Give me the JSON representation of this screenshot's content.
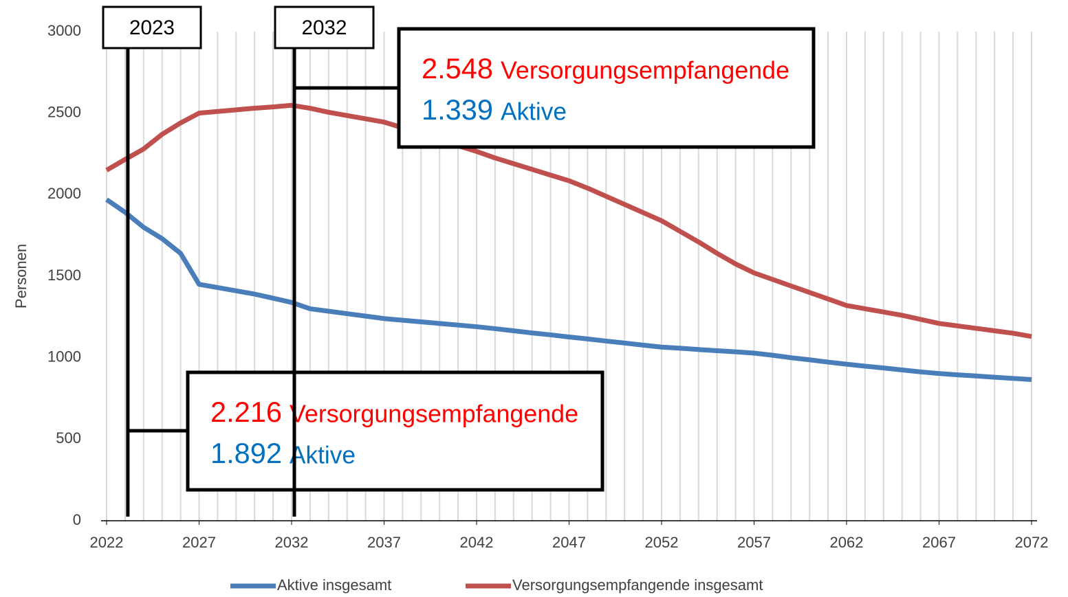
{
  "chart_data": {
    "type": "line",
    "y_label": "Personen",
    "x": [
      2022,
      2023,
      2024,
      2025,
      2026,
      2027,
      2028,
      2029,
      2030,
      2031,
      2032,
      2033,
      2034,
      2035,
      2036,
      2037,
      2038,
      2039,
      2040,
      2041,
      2042,
      2043,
      2044,
      2045,
      2046,
      2047,
      2048,
      2049,
      2050,
      2051,
      2052,
      2053,
      2054,
      2055,
      2056,
      2057,
      2058,
      2059,
      2060,
      2061,
      2062,
      2063,
      2064,
      2065,
      2066,
      2067,
      2068,
      2069,
      2070,
      2071,
      2072
    ],
    "series": [
      {
        "name": "Aktive insgesamt",
        "color": "#4a7ebb",
        "values": [
          1970,
          1892,
          1800,
          1730,
          1640,
          1450,
          1430,
          1410,
          1390,
          1365,
          1339,
          1300,
          1285,
          1270,
          1255,
          1240,
          1230,
          1220,
          1210,
          1200,
          1190,
          1178,
          1165,
          1152,
          1140,
          1127,
          1115,
          1102,
          1090,
          1077,
          1065,
          1058,
          1050,
          1043,
          1036,
          1028,
          1015,
          1000,
          987,
          973,
          960,
          948,
          937,
          925,
          913,
          903,
          895,
          888,
          880,
          873,
          866
        ]
      },
      {
        "name": "Versorgungsempfangende insgesamt",
        "color": "#c0504d",
        "values": [
          2150,
          2216,
          2280,
          2370,
          2440,
          2500,
          2510,
          2520,
          2530,
          2538,
          2548,
          2530,
          2505,
          2485,
          2465,
          2445,
          2410,
          2370,
          2330,
          2300,
          2265,
          2225,
          2190,
          2155,
          2120,
          2085,
          2040,
          1990,
          1940,
          1890,
          1840,
          1775,
          1710,
          1640,
          1575,
          1520,
          1480,
          1440,
          1400,
          1360,
          1320,
          1300,
          1280,
          1260,
          1235,
          1210,
          1195,
          1180,
          1165,
          1150,
          1130
        ]
      }
    ],
    "xlim": [
      2022,
      2072
    ],
    "xticks": [
      2022,
      2027,
      2032,
      2037,
      2042,
      2047,
      2052,
      2057,
      2062,
      2067,
      2072
    ],
    "ylim": [
      0,
      3000
    ],
    "yticks": [
      0,
      500,
      1000,
      1500,
      2000,
      2500,
      3000
    ],
    "grid": true,
    "legend": "bottom",
    "annotations": [
      {
        "x": 2023,
        "lines": [
          {
            "value": 2216,
            "value_label": "2.216",
            "text": "Versorgungsempfangende",
            "color": "#ff0000"
          },
          {
            "value": 1892,
            "value_label": "1.892",
            "text": "Aktive",
            "color": "#0070c0"
          }
        ]
      },
      {
        "x": 2032,
        "lines": [
          {
            "value": 2548,
            "value_label": "2.548",
            "text": "Versorgungsempfangende",
            "color": "#ff0000"
          },
          {
            "value": 1339,
            "value_label": "1.339",
            "text": "Aktive",
            "color": "#0070c0"
          }
        ]
      }
    ]
  }
}
